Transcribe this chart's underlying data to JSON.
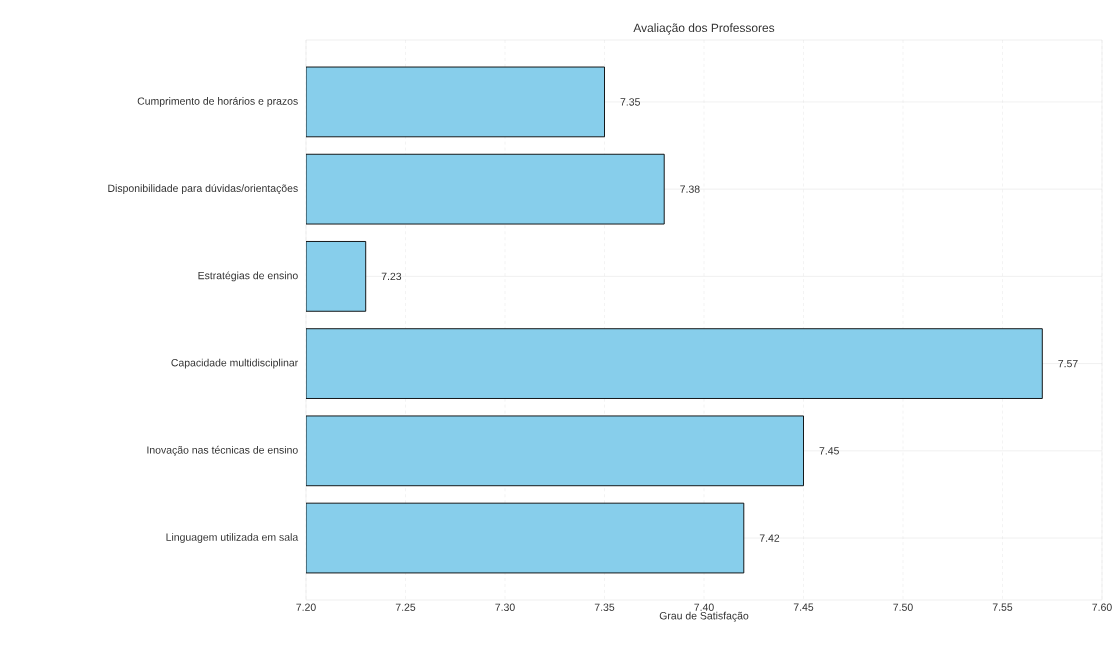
{
  "chart_data": {
    "type": "bar",
    "orientation": "horizontal",
    "title": "Avaliação dos Professores",
    "xlabel": "Grau de Satisfação",
    "categories": [
      "Cumprimento de horários e prazos",
      "Disponibilidade para dúvidas/orientações",
      "Estratégias de ensino",
      "Capacidade multidisciplinar",
      "Inovação nas técnicas de ensino",
      "Linguagem utilizada em sala"
    ],
    "values": [
      7.35,
      7.38,
      7.23,
      7.57,
      7.45,
      7.42
    ],
    "color": "#87ceeb",
    "data_labels": true,
    "grid": true,
    "xlim": [
      7.2,
      7.6
    ],
    "xticks": [
      {
        "value": 7.2,
        "label": "7.20"
      },
      {
        "value": 7.25,
        "label": "7.25"
      },
      {
        "value": 7.3,
        "label": "7.30"
      },
      {
        "value": 7.35,
        "label": "7.35"
      },
      {
        "value": 7.4,
        "label": "7.40"
      },
      {
        "value": 7.45,
        "label": "7.45"
      },
      {
        "value": 7.5,
        "label": "7.50"
      },
      {
        "value": 7.55,
        "label": "7.55"
      },
      {
        "value": 7.6,
        "label": "7.60"
      }
    ]
  }
}
